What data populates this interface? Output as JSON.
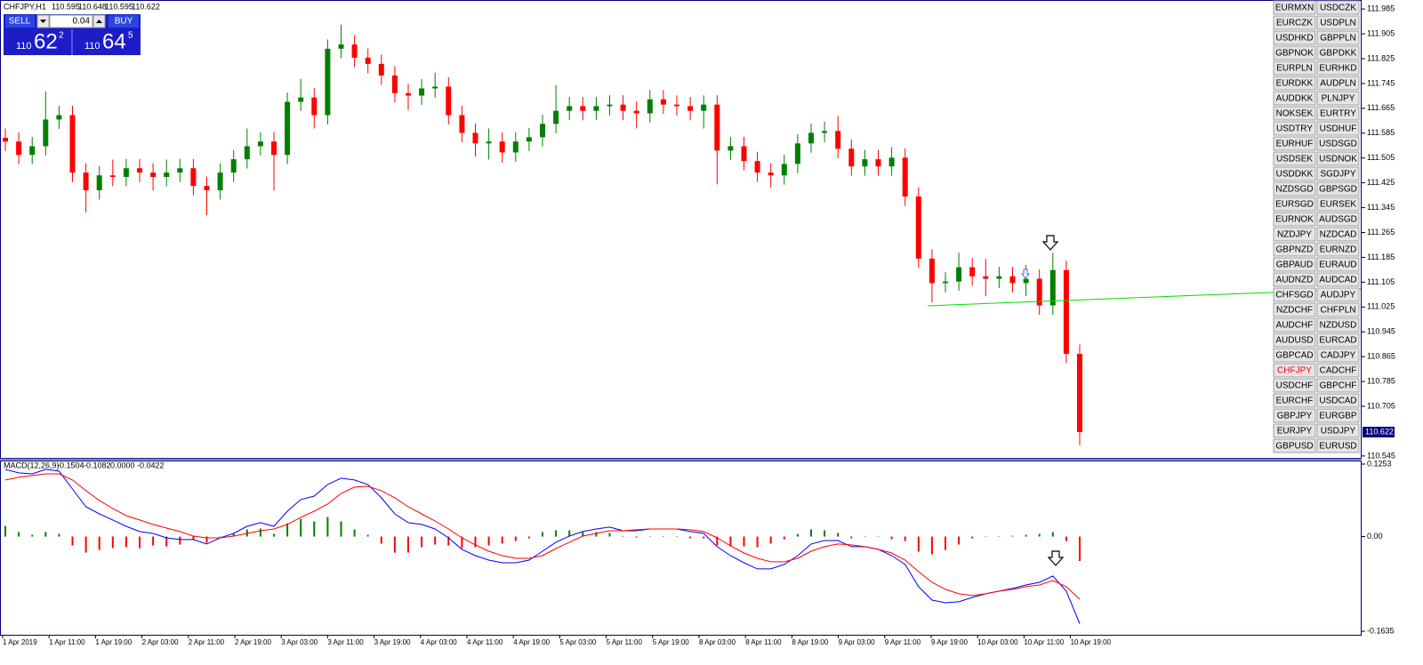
{
  "header": {
    "symbol": "CHFJPY,H1",
    "values": [
      110.595,
      110.648,
      110.595,
      110.622
    ]
  },
  "trade_panel": {
    "sell": "SELL",
    "buy": "BUY",
    "lot": "0.04",
    "sell_price": [
      "110",
      "62",
      "2"
    ],
    "buy_price": [
      "110",
      "64",
      "5"
    ]
  },
  "time_labels": [
    "1 Apr 2019",
    "1 Apr 11:00",
    "1 Apr 19:00",
    "2 Apr 03:00",
    "2 Apr 11:00",
    "2 Apr 19:00",
    "3 Apr 03:00",
    "3 Apr 11:00",
    "3 Apr 19:00",
    "4 Apr 03:00",
    "4 Apr 11:00",
    "4 Apr 19:00",
    "5 Apr 03:00",
    "5 Apr 11:00",
    "5 Apr 19:00",
    "8 Apr 03:00",
    "8 Apr 11:00",
    "8 Apr 19:00",
    "9 Apr 03:00",
    "9 Apr 11:00",
    "9 Apr 19:00",
    "10 Apr 03:00",
    "10 Apr 11:00",
    "10 Apr 19:00"
  ],
  "symbol_buttons": [
    [
      "EURMXN",
      "USDCZK"
    ],
    [
      "EURCZK",
      "USDPLN"
    ],
    [
      "USDHKD",
      "GBPPLN"
    ],
    [
      "GBPNOK",
      "GBPDKK"
    ],
    [
      "EURPLN",
      "EURHKD"
    ],
    [
      "EURDKK",
      "AUDPLN"
    ],
    [
      "AUDDKK",
      "PLNJPY"
    ],
    [
      "NOKSEK",
      "EURTRY"
    ],
    [
      "USDTRY",
      "USDHUF"
    ],
    [
      "EURHUF",
      "USDSGD"
    ],
    [
      "USDSEK",
      "USDNOK"
    ],
    [
      "USDDKK",
      "SGDJPY"
    ],
    [
      "NZDSGD",
      "GBPSGD"
    ],
    [
      "EURSGD",
      "EURSEK"
    ],
    [
      "EURNOK",
      "AUDSGD"
    ],
    [
      "NZDJPY",
      "NZDCAD"
    ],
    [
      "GBPNZD",
      "EURNZD"
    ],
    [
      "GBPAUD",
      "EURAUD"
    ],
    [
      "AUDNZD",
      "AUDCAD"
    ],
    [
      "CHFSGD",
      "AUDJPY"
    ],
    [
      "NZDCHF",
      "CHFPLN"
    ],
    [
      "AUDCHF",
      "NZDUSD"
    ],
    [
      "AUDUSD",
      "EURCAD"
    ],
    [
      "GBPCAD",
      "CADJPY"
    ],
    [
      "CHFJPY",
      "CADCHF"
    ],
    [
      "USDCHF",
      "GBPCHF"
    ],
    [
      "EURCHF",
      "USDCAD"
    ],
    [
      "GBPJPY",
      "EURGBP"
    ],
    [
      "EURJPY",
      "USDJPY"
    ],
    [
      "GBPUSD",
      "EURUSD"
    ]
  ],
  "highlight": {
    "row": 24,
    "col": 0,
    "color": "#ff0000"
  },
  "chart_data": [
    {
      "type": "candlestick",
      "up_color": "#008000",
      "down_color": "#ff0000",
      "current_price": 110.622,
      "ylim": [
        110.539,
        112.014
      ],
      "yticks": [
        111.985,
        111.905,
        111.825,
        111.745,
        111.665,
        111.585,
        111.505,
        111.425,
        111.345,
        111.265,
        111.185,
        111.105,
        111.025,
        110.945,
        110.865,
        110.785,
        110.705,
        110.545
      ],
      "open": [
        111.57,
        111.558,
        111.515,
        111.543,
        111.629,
        111.643,
        111.458,
        111.401,
        111.449,
        111.444,
        111.472,
        111.458,
        111.444,
        111.458,
        111.472,
        111.415,
        111.401,
        111.458,
        111.501,
        111.543,
        111.558,
        111.515,
        111.686,
        111.7,
        111.643,
        111.857,
        111.871,
        111.828,
        111.808,
        111.771,
        111.714,
        111.706,
        111.729,
        111.735,
        111.643,
        111.586,
        111.552,
        111.558,
        111.523,
        111.558,
        111.572,
        111.615,
        111.657,
        111.672,
        111.657,
        111.672,
        111.677,
        111.657,
        111.649,
        111.694,
        111.677,
        111.672,
        111.657,
        111.677,
        111.529,
        111.543,
        111.495,
        111.458,
        111.449,
        111.486,
        111.552,
        111.586,
        111.592,
        111.535,
        111.478,
        111.501,
        111.478,
        111.506,
        111.381,
        111.181,
        111.102,
        111.107,
        111.153,
        111.124,
        111.116,
        111.124,
        111.102,
        111.116,
        111.03,
        111.144,
        110.874
      ],
      "high": [
        111.6,
        111.588,
        111.573,
        111.72,
        111.673,
        111.673,
        111.488,
        111.479,
        111.5,
        111.502,
        111.502,
        111.488,
        111.5,
        111.502,
        111.502,
        111.445,
        111.488,
        111.531,
        111.6,
        111.588,
        111.588,
        111.716,
        111.76,
        111.73,
        111.887,
        111.935,
        111.901,
        111.858,
        111.838,
        111.801,
        111.744,
        111.759,
        111.78,
        111.765,
        111.673,
        111.616,
        111.6,
        111.588,
        111.588,
        111.602,
        111.645,
        111.74,
        111.702,
        111.702,
        111.702,
        111.707,
        111.707,
        111.687,
        111.724,
        111.724,
        111.707,
        111.702,
        111.707,
        111.707,
        111.573,
        111.573,
        111.525,
        111.488,
        111.516,
        111.582,
        111.616,
        111.622,
        111.64,
        111.565,
        111.531,
        111.531,
        111.54,
        111.536,
        111.411,
        111.211,
        111.137,
        111.2,
        111.183,
        111.18,
        111.154,
        111.154,
        111.16,
        111.146,
        111.2,
        111.174,
        110.904
      ],
      "low": [
        111.528,
        111.485,
        111.485,
        111.513,
        111.599,
        111.428,
        111.33,
        111.371,
        111.414,
        111.414,
        111.428,
        111.4,
        111.414,
        111.428,
        111.385,
        111.32,
        111.371,
        111.428,
        111.471,
        111.513,
        111.4,
        111.485,
        111.656,
        111.6,
        111.613,
        111.827,
        111.798,
        111.778,
        111.741,
        111.684,
        111.66,
        111.676,
        111.699,
        111.613,
        111.556,
        111.51,
        111.5,
        111.49,
        111.493,
        111.528,
        111.542,
        111.585,
        111.627,
        111.627,
        111.627,
        111.642,
        111.627,
        111.6,
        111.619,
        111.647,
        111.642,
        111.627,
        111.6,
        111.42,
        111.499,
        111.465,
        111.428,
        111.41,
        111.419,
        111.456,
        111.522,
        111.556,
        111.505,
        111.448,
        111.448,
        111.448,
        111.448,
        111.351,
        111.151,
        111.04,
        111.072,
        111.077,
        111.094,
        111.06,
        111.086,
        111.072,
        111.06,
        111.0,
        111.0,
        110.844,
        110.58
      ],
      "close": [
        111.558,
        111.515,
        111.543,
        111.629,
        111.643,
        111.458,
        111.401,
        111.449,
        111.444,
        111.472,
        111.458,
        111.444,
        111.458,
        111.472,
        111.415,
        111.401,
        111.458,
        111.501,
        111.543,
        111.558,
        111.515,
        111.686,
        111.7,
        111.643,
        111.857,
        111.871,
        111.828,
        111.808,
        111.771,
        111.714,
        111.706,
        111.729,
        111.735,
        111.643,
        111.586,
        111.552,
        111.558,
        111.523,
        111.558,
        111.572,
        111.615,
        111.657,
        111.672,
        111.657,
        111.672,
        111.677,
        111.657,
        111.649,
        111.694,
        111.677,
        111.672,
        111.657,
        111.677,
        111.529,
        111.543,
        111.495,
        111.458,
        111.449,
        111.486,
        111.552,
        111.586,
        111.592,
        111.535,
        111.478,
        111.501,
        111.478,
        111.506,
        111.381,
        111.181,
        111.102,
        111.107,
        111.153,
        111.124,
        111.116,
        111.124,
        111.102,
        111.116,
        111.03,
        111.144,
        110.874,
        110.622
      ]
    },
    {
      "type": "macd",
      "title": "MACD(12,26,9)",
      "header_values": [
        "-0.1504",
        "-0.1082",
        "0.0000",
        "-0.0422"
      ],
      "ylim": [
        -0.1712,
        0.1314
      ],
      "yticks": [
        0.1253,
        {
          "value": 0,
          "label": "0.00"
        },
        -0.1635
      ],
      "series": [
        {
          "color": "#0000ff",
          "values": [
            0.1161,
            0.11,
            0.1084,
            0.1161,
            0.1131,
            0.0823,
            0.0516,
            0.0393,
            0.0286,
            0.0178,
            0.0086,
            0.0055,
            -0.0022,
            -0.0052,
            -0.0052,
            -0.0129,
            -0.0022,
            0.0055,
            0.0178,
            0.024,
            0.0178,
            0.0439,
            0.0639,
            0.07,
            0.09,
            0.1008,
            0.0977,
            0.09,
            0.067,
            0.0393,
            0.024,
            0.0209,
            0.0132,
            -0.0022,
            -0.0221,
            -0.0329,
            -0.0406,
            -0.0452,
            -0.0452,
            -0.0406,
            -0.0252,
            -0.0098,
            0.0009,
            0.0086,
            0.0132,
            0.0163,
            0.0101,
            0.0101,
            0.0132,
            0.0132,
            0.0132,
            0.0086,
            0.0055,
            -0.0175,
            -0.0329,
            -0.0452,
            -0.0559,
            -0.0559,
            -0.0482,
            -0.0329,
            -0.0129,
            -0.0068,
            -0.0068,
            -0.0175,
            -0.0175,
            -0.0221,
            -0.0329,
            -0.0482,
            -0.0866,
            -0.1097,
            -0.1143,
            -0.1127,
            -0.1051,
            -0.0989,
            -0.0943,
            -0.0897,
            -0.0836,
            -0.079,
            -0.0682,
            -0.0943,
            -0.1504
          ]
        },
        {
          "color": "#ff0000",
          "values": [
            0.0977,
            0.1023,
            0.1054,
            0.1084,
            0.1084,
            0.0977,
            0.0793,
            0.0624,
            0.0485,
            0.0362,
            0.0286,
            0.0209,
            0.0147,
            0.0086,
            0.0009,
            -0.0022,
            -0.0022,
            0.0009,
            0.0055,
            0.0101,
            0.0132,
            0.0209,
            0.0332,
            0.0439,
            0.0562,
            0.0746,
            0.0854,
            0.0869,
            0.0793,
            0.067,
            0.0516,
            0.0393,
            0.027,
            0.0132,
            -0.0022,
            -0.0144,
            -0.0252,
            -0.0329,
            -0.0375,
            -0.0375,
            -0.0329,
            -0.0206,
            -0.0098,
            0.0009,
            0.0055,
            0.0101,
            0.0101,
            0.0117,
            0.0132,
            0.0132,
            0.0132,
            0.0117,
            0.0086,
            -0.0022,
            -0.016,
            -0.0283,
            -0.0375,
            -0.0436,
            -0.0436,
            -0.0375,
            -0.0252,
            -0.0175,
            -0.0129,
            -0.0144,
            -0.0175,
            -0.0221,
            -0.0283,
            -0.0406,
            -0.0605,
            -0.079,
            -0.0912,
            -0.0989,
            -0.102,
            -0.0989,
            -0.0943,
            -0.0912,
            -0.0866,
            -0.0836,
            -0.0759,
            -0.0866,
            -0.1082
          ]
        }
      ],
      "histogram": {
        "up_color": "#008000",
        "down_color": "#ff0000",
        "values": [
          0.0184,
          0.0077,
          0.003,
          0.0077,
          0.0047,
          -0.0154,
          -0.0277,
          -0.0231,
          -0.0199,
          -0.0184,
          -0.02,
          -0.0154,
          -0.0169,
          -0.0138,
          -0.0061,
          -0.0107,
          0,
          0.0046,
          0.0123,
          0.0139,
          0.0046,
          0.023,
          0.0307,
          0.0261,
          0.0338,
          0.0262,
          0.0123,
          0.0031,
          -0.0123,
          -0.0277,
          -0.0276,
          -0.0184,
          -0.0138,
          -0.0154,
          -0.0199,
          -0.0185,
          -0.0154,
          -0.0123,
          -0.0077,
          -0.0031,
          0.0077,
          0.0108,
          0.0107,
          0.0077,
          0.0077,
          0.0062,
          0,
          -0.0016,
          0,
          0,
          0,
          -0.0031,
          -0.0031,
          -0.0153,
          -0.0169,
          -0.0169,
          -0.0184,
          -0.0123,
          -0.0046,
          0.0046,
          0.0123,
          0.0107,
          0.0061,
          -0.0031,
          0,
          0,
          -0.0046,
          -0.0076,
          -0.0261,
          -0.0307,
          -0.0231,
          -0.0138,
          -0.0031,
          0,
          0,
          0.0015,
          0.003,
          0.0046,
          0.0077,
          -0.0077,
          -0.0422
        ]
      }
    }
  ]
}
